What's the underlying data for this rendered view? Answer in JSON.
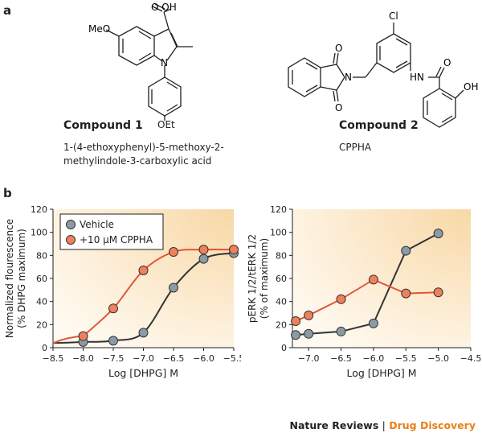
{
  "panel_a": {
    "letter": "a",
    "compound1": {
      "title": "Compound 1",
      "desc_line1": "1-(4-ethoxyphenyl)-5-methoxy-2-",
      "desc_line2": "methylindole-3-carboxylic acid",
      "labels": {
        "cooh": "O OH",
        "c": "C",
        "meo": "MeO",
        "n": "N",
        "oet": "OEt"
      }
    },
    "compound2": {
      "title": "Compound 2",
      "desc_line1": "CPPHA",
      "labels": {
        "cl": "Cl",
        "o_top": "O",
        "o_bot": "O",
        "n": "N",
        "hn": "HN",
        "o_amide": "O",
        "oh": "OH"
      }
    }
  },
  "panel_b": {
    "letter": "b"
  },
  "chart_data": [
    {
      "type": "line",
      "xlabel": "Log [DHPG] M",
      "ylabel_line1": "Normalized flourescence",
      "ylabel_line2": "(% DHPG maximum)",
      "xlim": [
        -8.5,
        -5.5
      ],
      "ylim": [
        0,
        120
      ],
      "xticks": [
        -8.5,
        -8.0,
        -7.5,
        -7.0,
        -6.5,
        -6.0,
        -5.5
      ],
      "xtick_labels": [
        "−8.5",
        "−8.0",
        "−7.5",
        "−7.0",
        "−6.5",
        "−6.0",
        "−5.5"
      ],
      "yticks": [
        0,
        20,
        40,
        60,
        80,
        100,
        120
      ],
      "legend_position": "top-left",
      "series": [
        {
          "name": "Vehicle",
          "color": "#8a9aa6",
          "line": "#333333",
          "x": [
            -8.0,
            -7.5,
            -7.0,
            -6.5,
            -6.0,
            -5.5
          ],
          "y": [
            5,
            6,
            13,
            52,
            77,
            82
          ]
        },
        {
          "name": "+10 μM CPPHA",
          "color": "#f07f5c",
          "line": "#e2553a",
          "x": [
            -8.0,
            -7.5,
            -7.0,
            -6.5,
            -6.0,
            -5.5
          ],
          "y": [
            10,
            34,
            67,
            83,
            85,
            85
          ]
        }
      ]
    },
    {
      "type": "line",
      "xlabel": "Log [DHPG] M",
      "ylabel_line1": "pERK 1/2/tERK 1/2",
      "ylabel_line2": "(% of maximum)",
      "xlim": [
        -7.25,
        -4.5
      ],
      "ylim": [
        0,
        120
      ],
      "xticks": [
        -7.0,
        -6.5,
        -6.0,
        -5.5,
        -5.0,
        -4.5
      ],
      "xtick_labels": [
        "−7.0",
        "−6.5",
        "−6.0",
        "−5.5",
        "−5.0",
        "−4.5"
      ],
      "yticks": [
        0,
        20,
        40,
        60,
        80,
        100,
        120
      ],
      "series": [
        {
          "name": "Vehicle",
          "color": "#8a9aa6",
          "line": "#333333",
          "x": [
            -7.2,
            -7.0,
            -6.5,
            -6.0,
            -5.5,
            -5.0
          ],
          "y": [
            11,
            12,
            14,
            21,
            84,
            99
          ]
        },
        {
          "name": "+10 μM CPPHA",
          "color": "#f07f5c",
          "line": "#e2553a",
          "x": [
            -7.2,
            -7.0,
            -6.5,
            -6.0,
            -5.5,
            -5.0
          ],
          "y": [
            23,
            28,
            42,
            59,
            47,
            48
          ]
        }
      ]
    }
  ],
  "footer": {
    "journal": "Nature Reviews",
    "sep": "|",
    "section": "Drug Discovery"
  }
}
